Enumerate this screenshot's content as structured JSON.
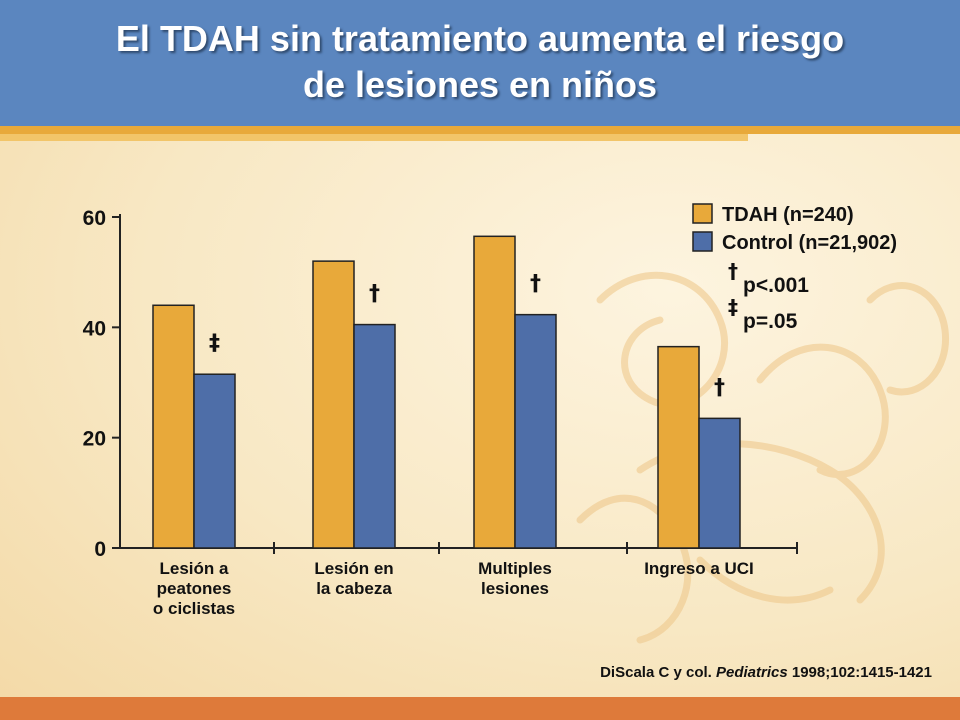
{
  "slide": {
    "title_line1": "El TDAH sin tratamiento aumenta el riesgo",
    "title_line2": "de lesiones en niños",
    "citation_prefix": "DiScala C y col.",
    "citation_journal": "Pediatrics",
    "citation_suffix": "1998;102:1415-1421",
    "colors": {
      "header": "#5b86bf",
      "stripe": "#e8a93a",
      "footer": "#de7a3a",
      "tdah": "#e8a93a",
      "control": "#4e6ea8"
    }
  },
  "chart_data": {
    "type": "bar",
    "categories": [
      [
        "Lesión a",
        "peatones",
        "o ciclistas"
      ],
      [
        "Lesión en",
        "la cabeza"
      ],
      [
        "Multiples",
        "lesiones"
      ],
      [
        "Ingreso a UCI"
      ]
    ],
    "series": [
      {
        "name": "TDAH (n=240)",
        "color": "#e8a93a",
        "values": [
          44,
          52,
          56.5,
          36.5
        ]
      },
      {
        "name": "Control (n=21,902)",
        "color": "#4e6ea8",
        "values": [
          31.5,
          40.5,
          42.3,
          23.5
        ]
      }
    ],
    "markers": [
      "‡",
      "†",
      "†",
      "†"
    ],
    "ylim": [
      0,
      60
    ],
    "yticks": [
      "0",
      "20",
      "40",
      "60"
    ],
    "legend_position": "top-right",
    "significance": [
      {
        "symbol": "†",
        "label": "p<.001"
      },
      {
        "symbol": "‡",
        "label": "p=.05"
      }
    ]
  }
}
